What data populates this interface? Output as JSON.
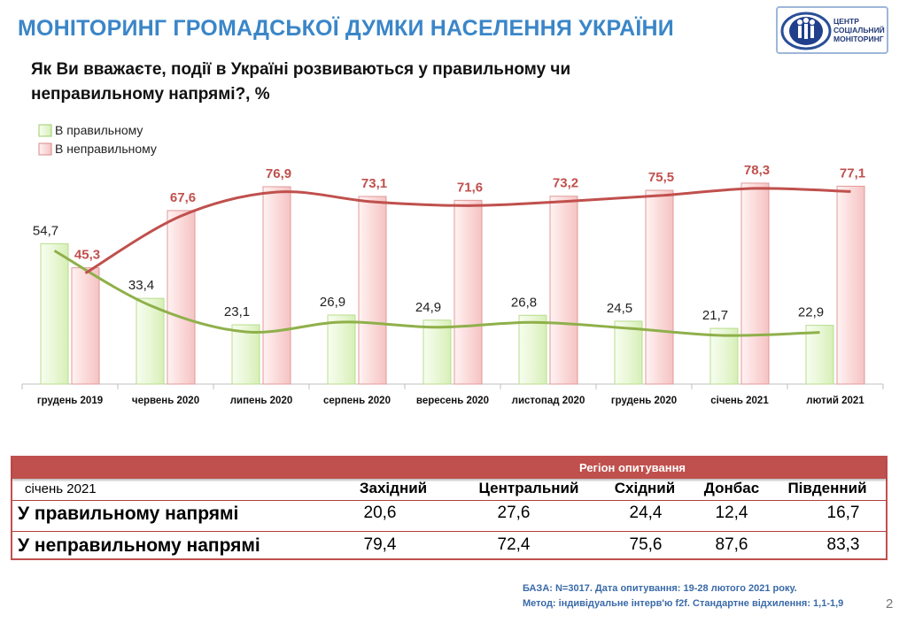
{
  "header": {
    "title": "МОНІТОРИНГ ГРОМАДСЬКОЇ ДУМКИ НАСЕЛЕННЯ УКРАЇНИ",
    "logo_lines": [
      "ЦЕНТР",
      "СОЦІАЛЬНИЙ",
      "МОНІТОРИНГ"
    ]
  },
  "question": "Як Ви вважаєте, події в Україні розвиваються у правильному чи неправильному напрямі?, %",
  "colors": {
    "title": "#3a86c8",
    "green_bar": "#e9f7d6",
    "green_line": "#8fb04a",
    "red_bar": "#fbdada",
    "red_line": "#c0504d",
    "red_label": "#c0504d"
  },
  "chart_data": {
    "type": "bar",
    "categories": [
      "грудень 2019",
      "червень 2020",
      "липень 2020",
      "серпень 2020",
      "вересень 2020",
      "листопад 2020",
      "грудень 2020",
      "січень  2021",
      "лютий  2021"
    ],
    "series": [
      {
        "name": "В правильному",
        "values": [
          54.7,
          33.4,
          23.1,
          26.9,
          24.9,
          26.8,
          24.5,
          21.7,
          22.9
        ],
        "labels": [
          "54,7",
          "33,4",
          "23,1",
          "26,9",
          "24,9",
          "26,8",
          "24,5",
          "21,7",
          "22,9"
        ]
      },
      {
        "name": "В неправильному",
        "values": [
          45.3,
          67.6,
          76.9,
          73.1,
          71.6,
          73.2,
          75.5,
          78.3,
          77.1
        ],
        "labels": [
          "45,3",
          "67,6",
          "76,9",
          "73,1",
          "71,6",
          "73,2",
          "75,5",
          "78,3",
          "77,1"
        ]
      }
    ],
    "ylim": [
      0,
      100
    ],
    "legend_position": "top-left",
    "grid": false
  },
  "table": {
    "group_header": "Регіон опитування",
    "period": "січень 2021",
    "columns": [
      "Західний",
      "Центральний",
      "Східний",
      "Донбас",
      "Південний"
    ],
    "rows": [
      {
        "label": "У правильному напрямі",
        "values": [
          "20,6",
          "27,6",
          "24,4",
          "12,4",
          "16,7"
        ]
      },
      {
        "label": "У неправильному напрямі",
        "values": [
          "79,4",
          "72,4",
          "75,6",
          "87,6",
          "83,3"
        ]
      }
    ]
  },
  "footnote": {
    "line1": "БАЗА: N=3017. Дата опитування: 19-28 лютого 2021 року.",
    "line2": "Метод: індивідуальне інтерв'ю f2f. Стандартне відхилення: 1,1-1,9"
  },
  "page_number": "2"
}
